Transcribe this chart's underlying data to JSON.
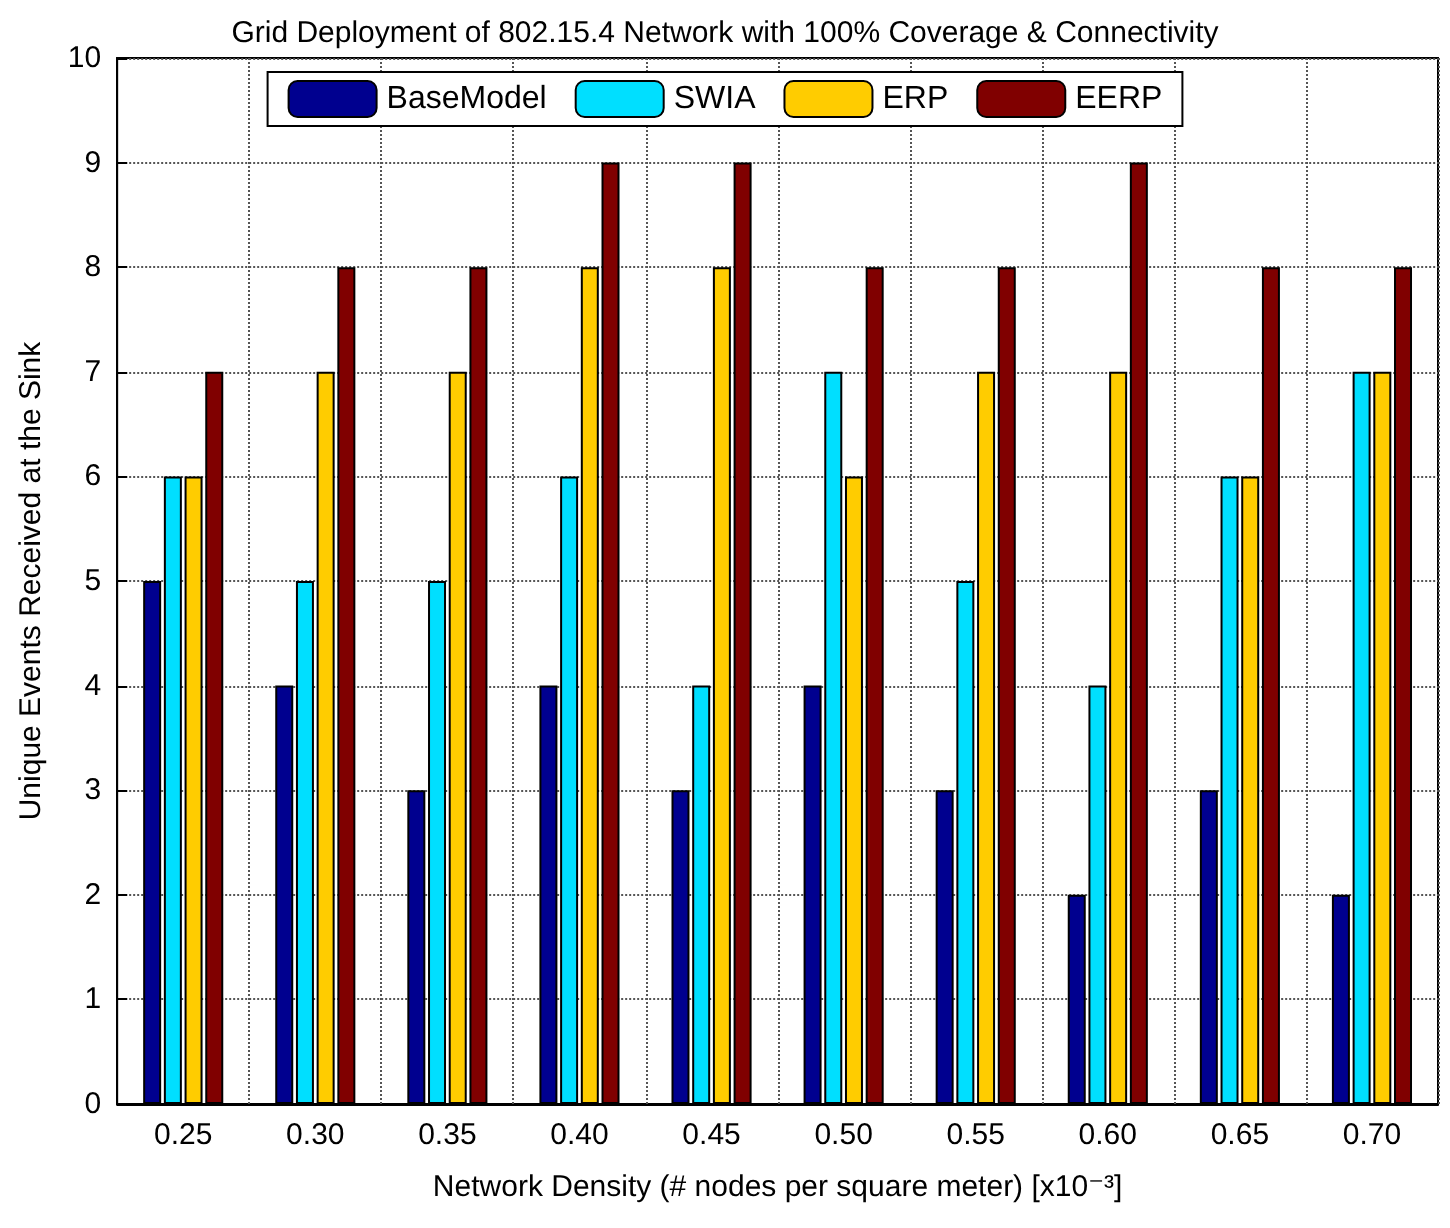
{
  "chart_data": {
    "type": "bar",
    "title": "Grid Deployment of 802.15.4 Network with 100% Coverage & Connectivity",
    "xlabel": "Network Density (# nodes per square meter) [x10⁻³]",
    "ylabel": "Unique Events Received at the Sink",
    "categories": [
      "0.25",
      "0.30",
      "0.35",
      "0.40",
      "0.45",
      "0.50",
      "0.55",
      "0.60",
      "0.65",
      "0.70"
    ],
    "series": [
      {
        "name": "BaseModel",
        "color": "#00008f",
        "values": [
          5,
          4,
          3,
          4,
          3,
          4,
          3,
          2,
          3,
          2
        ]
      },
      {
        "name": "SWIA",
        "color": "#00dfff",
        "values": [
          6,
          5,
          5,
          6,
          4,
          7,
          5,
          4,
          6,
          7
        ]
      },
      {
        "name": "ERP",
        "color": "#ffcc00",
        "values": [
          6,
          7,
          7,
          8,
          8,
          6,
          7,
          7,
          6,
          7
        ]
      },
      {
        "name": "EERP",
        "color": "#800000",
        "values": [
          7,
          8,
          8,
          9,
          9,
          8,
          8,
          9,
          8,
          8
        ]
      }
    ],
    "ylim": [
      0,
      10
    ],
    "yticks": [
      0,
      1,
      2,
      3,
      4,
      5,
      6,
      7,
      8,
      9,
      10
    ],
    "grid": true,
    "legend": "top"
  }
}
